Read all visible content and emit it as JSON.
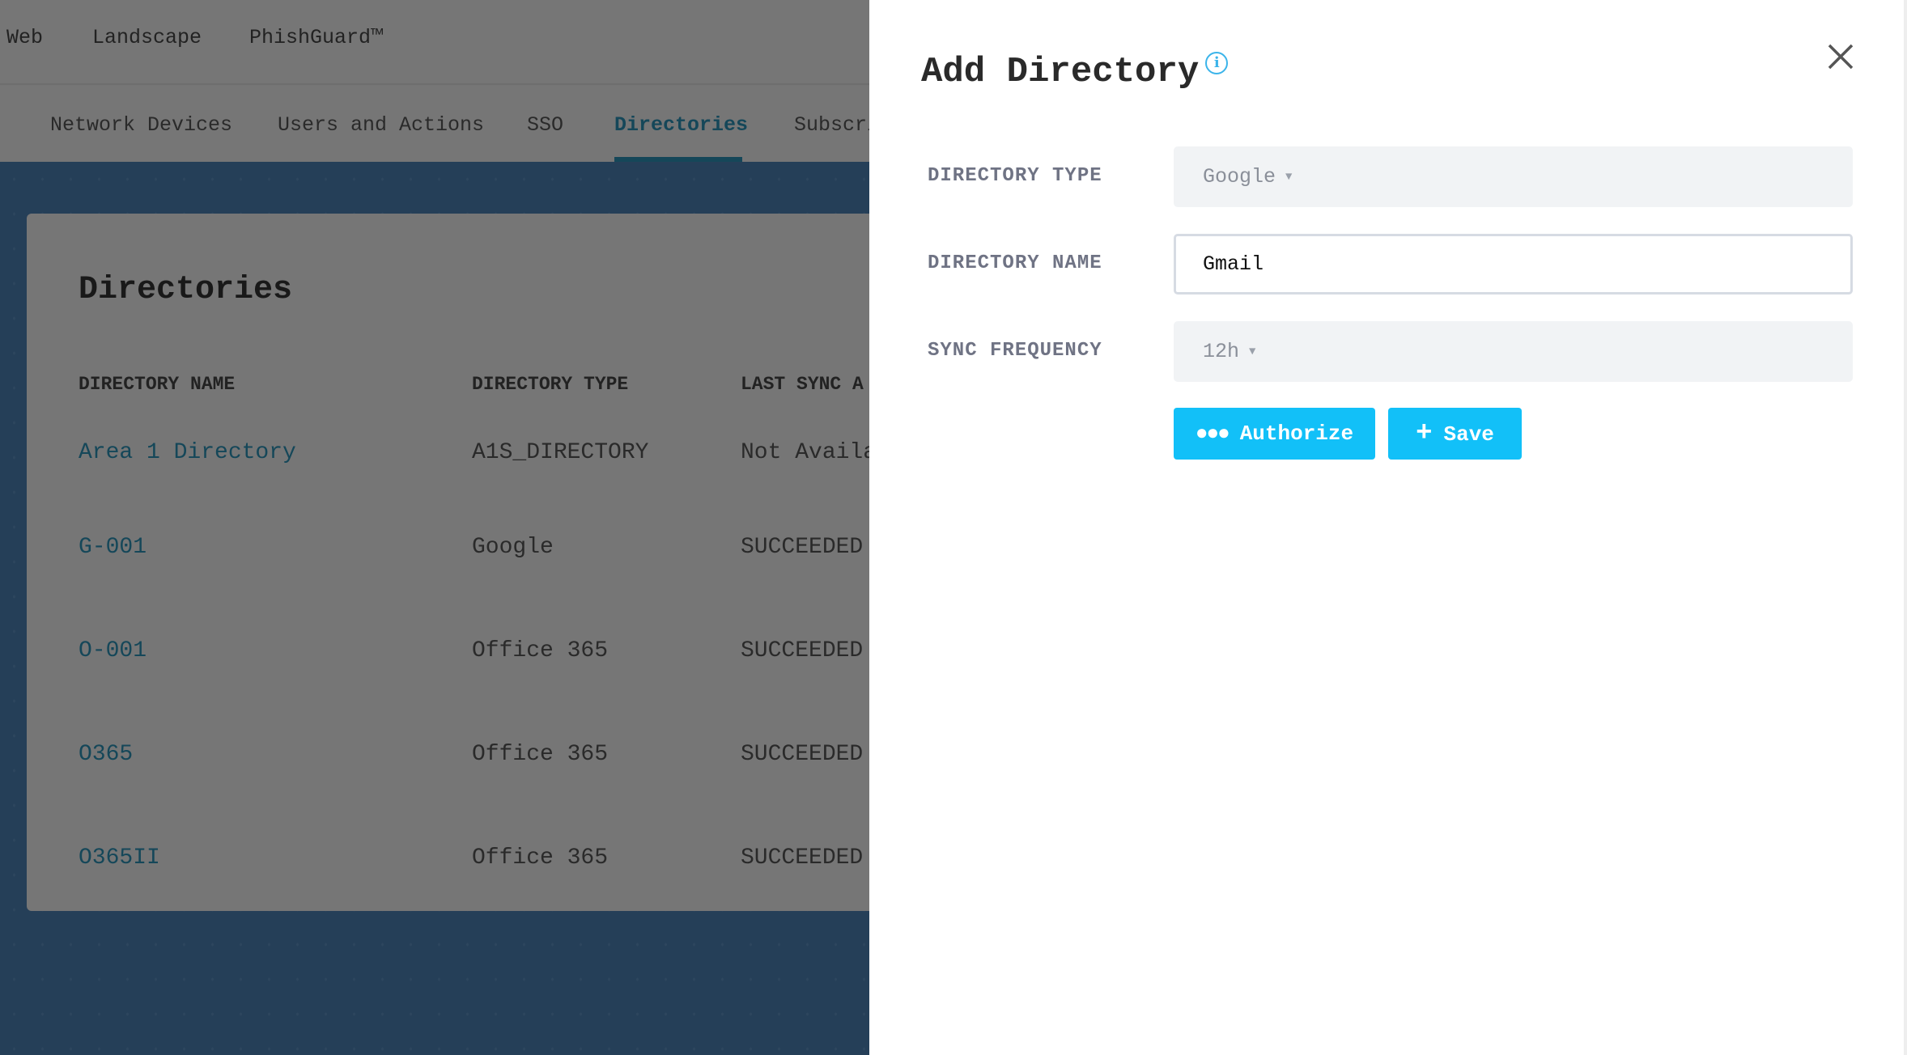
{
  "top_nav": [
    "Web",
    "Landscape",
    "PhishGuard™"
  ],
  "tabs": [
    "Network Devices",
    "Users and Actions",
    "SSO",
    "Directories",
    "Subscri"
  ],
  "active_tab": "Directories",
  "card": {
    "title": "Directories",
    "columns": [
      "DIRECTORY NAME",
      "DIRECTORY TYPE",
      "LAST SYNC A"
    ],
    "rows": [
      [
        "Area 1 Directory",
        "A1S_DIRECTORY",
        "Not Availa"
      ],
      [
        "G-001",
        "Google",
        "SUCCEEDED"
      ],
      [
        "O-001",
        "Office 365",
        "SUCCEEDED"
      ],
      [
        "O365",
        "Office 365",
        "SUCCEEDED"
      ],
      [
        "O365II",
        "Office 365",
        "SUCCEEDED"
      ]
    ]
  },
  "panel": {
    "title": "Add Directory",
    "info_icon": "info-circle-icon",
    "close_icon": "close-x-icon",
    "fields": {
      "type_label": "DIRECTORY TYPE",
      "type_value": "Google",
      "name_label": "DIRECTORY NAME",
      "name_value": "Gmail",
      "freq_label": "SYNC FREQUENCY",
      "freq_value": "12h"
    },
    "authorize_label": "Authorize",
    "save_label": "Save"
  },
  "colors": {
    "accent": "#12c0f8",
    "link": "#2b8fb3",
    "background_blue": "#4a7eb0"
  }
}
